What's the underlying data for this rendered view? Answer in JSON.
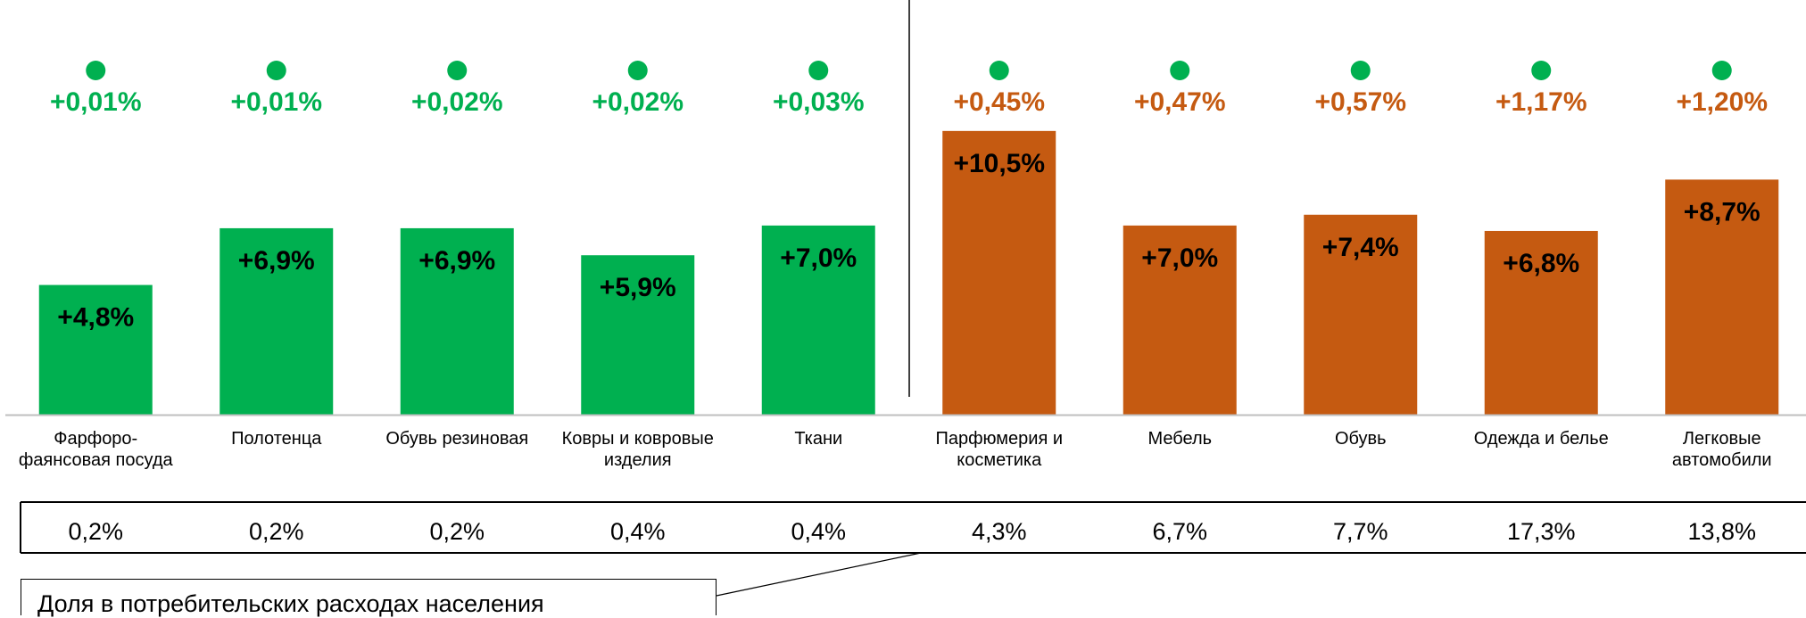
{
  "colors": {
    "low": "#00b050",
    "high": "#c55a11",
    "text": "#000000",
    "axis": "#bfbfbf"
  },
  "chart_data": {
    "type": "bar",
    "categories": [
      [
        "Фарфоро-",
        "фаянсовая посуда"
      ],
      [
        "Полотенца"
      ],
      [
        "Обувь резиновая"
      ],
      [
        "Ковры и ковровые",
        "изделия"
      ],
      [
        "Ткани"
      ],
      [
        "Парфюмерия и",
        "косметика"
      ],
      [
        "Мебель"
      ],
      [
        "Обувь"
      ],
      [
        "Одежда и белье"
      ],
      [
        "Легковые",
        "автомобили"
      ]
    ],
    "values": [
      4.8,
      6.9,
      6.9,
      5.9,
      7.0,
      10.5,
      7.0,
      7.4,
      6.8,
      8.7
    ],
    "value_labels": [
      "+4,8%",
      "+6,9%",
      "+6,9%",
      "+5,9%",
      "+7,0%",
      "+10,5%",
      "+7,0%",
      "+7,4%",
      "+6,8%",
      "+8,7%"
    ],
    "groups": [
      "low",
      "low",
      "low",
      "low",
      "low",
      "high",
      "high",
      "high",
      "high",
      "high"
    ],
    "contributions": [
      0.01,
      0.01,
      0.02,
      0.02,
      0.03,
      0.45,
      0.47,
      0.57,
      1.17,
      1.2
    ],
    "contribution_labels": [
      "+0,01%",
      "+0,01%",
      "+0,02%",
      "+0,02%",
      "+0,03%",
      "+0,45%",
      "+0,47%",
      "+0,57%",
      "+1,17%",
      "+1,20%"
    ],
    "shares": [
      "0,2%",
      "0,2%",
      "0,2%",
      "0,4%",
      "0,4%",
      "4,3%",
      "6,7%",
      "7,7%",
      "17,3%",
      "13,8%"
    ],
    "ylim": [
      0,
      11.4
    ],
    "divider_after_index": 4
  },
  "note": {
    "text": "Доля в потребительских расходах населения"
  }
}
